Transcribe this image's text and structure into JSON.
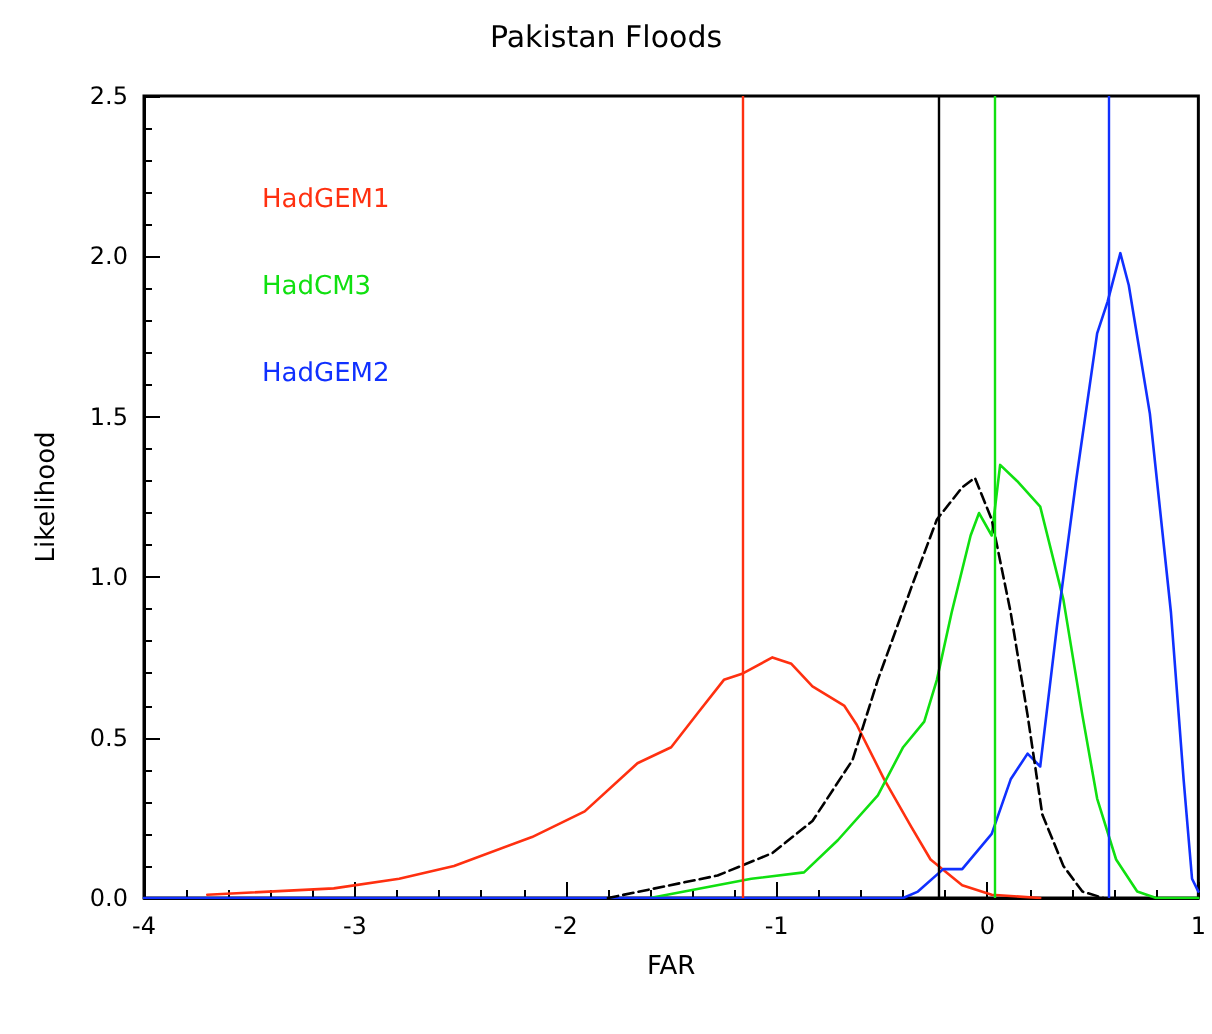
{
  "chart_data": {
    "type": "line",
    "title": "Pakistan Floods",
    "xlabel": "FAR",
    "ylabel": "Likelihood",
    "xlim": [
      -4,
      1
    ],
    "xticks": [
      -4,
      -3,
      -2,
      -1,
      0,
      1
    ],
    "ylim": [
      0,
      2.5
    ],
    "yticks": [
      {
        "value": 0,
        "label": "0.0"
      },
      {
        "value": 0.5,
        "label": "0.5"
      },
      {
        "value": 1,
        "label": "1.0"
      },
      {
        "value": 1.5,
        "label": "1.5"
      },
      {
        "value": 2,
        "label": "2.0"
      },
      {
        "value": 2.5,
        "label": "2.5"
      }
    ],
    "grid": false,
    "legend": "top left",
    "marker": "none",
    "line_style": "solid",
    "series": [
      {
        "name": "HadGEM1",
        "color": "#ff3010",
        "x": [
          -3.7,
          -3.1,
          -2.79,
          -2.53,
          -2.16,
          -1.91,
          -1.66,
          -1.5,
          -1.37,
          -1.25,
          -1.16,
          -1.02,
          -0.93,
          -0.83,
          -0.68,
          -0.62,
          -0.49,
          -0.36,
          -0.27,
          -0.12,
          0.02,
          0.25
        ],
        "values": [
          0.01,
          0.03,
          0.06,
          0.1,
          0.19,
          0.27,
          0.42,
          0.47,
          0.58,
          0.68,
          0.7,
          0.75,
          0.73,
          0.66,
          0.6,
          0.54,
          0.37,
          0.22,
          0.12,
          0.04,
          0.01,
          0
        ]
      },
      {
        "name": "HadCM3",
        "color": "#10e010",
        "x": [
          -1.6,
          -1.12,
          -0.87,
          -0.71,
          -0.52,
          -0.4,
          -0.3,
          -0.24,
          -0.17,
          -0.08,
          -0.04,
          0.02,
          0.06,
          0.14,
          0.25,
          0.36,
          0.45,
          0.52,
          0.61,
          0.71,
          0.8,
          1
        ],
        "values": [
          0,
          0.06,
          0.08,
          0.18,
          0.32,
          0.47,
          0.55,
          0.68,
          0.89,
          1.13,
          1.2,
          1.13,
          1.35,
          1.3,
          1.22,
          0.93,
          0.57,
          0.31,
          0.12,
          0.02,
          0,
          0
        ]
      },
      {
        "name": "HadGEM2",
        "color": "#1030ff",
        "x": [
          -4,
          -0.4,
          -0.33,
          -0.21,
          -0.12,
          0.02,
          0.11,
          0.19,
          0.25,
          0.33,
          0.42,
          0.52,
          0.57,
          0.63,
          0.67,
          0.77,
          0.87,
          0.93,
          0.97,
          1
        ],
        "values": [
          0,
          0,
          0.02,
          0.09,
          0.09,
          0.2,
          0.37,
          0.45,
          0.41,
          0.85,
          1.3,
          1.76,
          1.86,
          2.01,
          1.91,
          1.51,
          0.89,
          0.37,
          0.06,
          0.02
        ]
      },
      {
        "color": "#000000",
        "line_style": "dashed",
        "x": [
          -1.8,
          -1.28,
          -1.02,
          -0.83,
          -0.64,
          -0.52,
          -0.36,
          -0.24,
          -0.12,
          -0.06,
          0.02,
          0.11,
          0.19,
          0.26,
          0.36,
          0.45,
          0.55
        ],
        "values": [
          0,
          0.07,
          0.14,
          0.24,
          0.43,
          0.68,
          0.97,
          1.18,
          1.28,
          1.31,
          1.18,
          0.89,
          0.57,
          0.26,
          0.1,
          0.02,
          0
        ]
      }
    ],
    "ref_lines": [
      {
        "axis": "x",
        "value": -1.16,
        "color": "#ff3010"
      },
      {
        "axis": "x",
        "value": -0.23,
        "color": "#000000"
      },
      {
        "axis": "x",
        "value": 0.03,
        "color": "#10e010"
      },
      {
        "axis": "x",
        "value": 0.57,
        "color": "#1030ff"
      }
    ]
  }
}
